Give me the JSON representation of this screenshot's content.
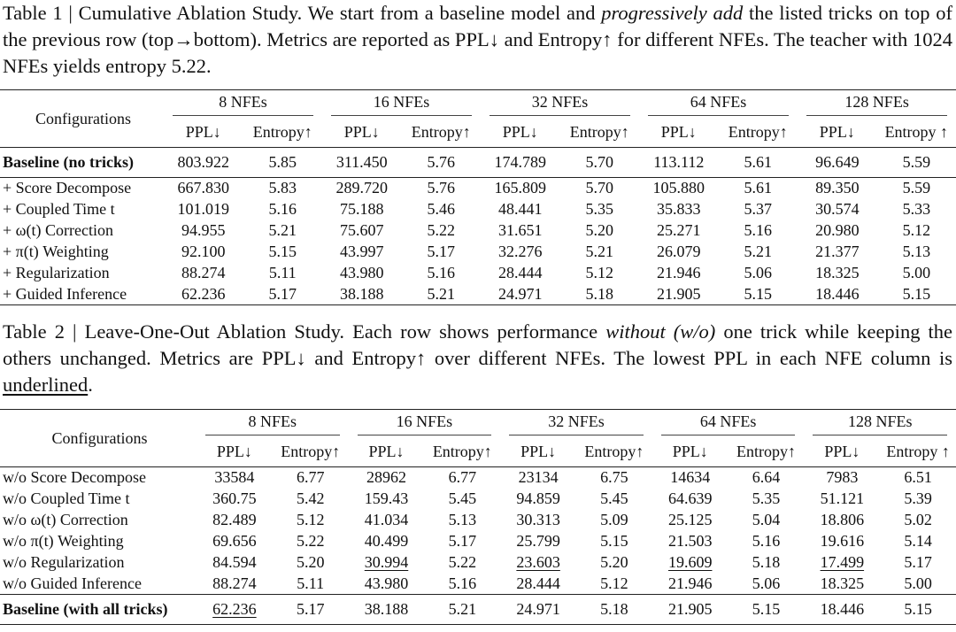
{
  "table1": {
    "caption": [
      "Table 1 | Cumulative Ablation Study. We start from a baseline model and ",
      "progressively add",
      " the listed tricks on top of the previous row (top→bottom). Metrics are reported as PPL↓ and Entropy↑ for different NFEs. The teacher with 1024 NFEs yields entropy 5.22."
    ],
    "config_header": "Configurations",
    "groups": [
      "8 NFEs",
      "16 NFEs",
      "32 NFEs",
      "64 NFEs",
      "128 NFEs"
    ],
    "subheaders": [
      "PPL↓",
      "Entropy↑",
      "PPL↓",
      "Entropy↑",
      "PPL↓",
      "Entropy↑",
      "PPL↓",
      "Entropy↑",
      "PPL↓",
      "Entropy ↑"
    ],
    "rows": [
      [
        "Baseline (no tricks)",
        "803.922",
        "5.85",
        "311.450",
        "5.76",
        "174.789",
        "5.70",
        "113.112",
        "5.61",
        "96.649",
        "5.59"
      ],
      [
        "+ Score Decompose",
        "667.830",
        "5.83",
        "289.720",
        "5.76",
        "165.809",
        "5.70",
        "105.880",
        "5.61",
        "89.350",
        "5.59"
      ],
      [
        "+ Coupled Time t",
        "101.019",
        "5.16",
        "75.188",
        "5.46",
        "48.441",
        "5.35",
        "35.833",
        "5.37",
        "30.574",
        "5.33"
      ],
      [
        "+ ω(t) Correction",
        "94.955",
        "5.21",
        "75.607",
        "5.22",
        "31.651",
        "5.20",
        "25.271",
        "5.16",
        "20.980",
        "5.12"
      ],
      [
        "+ π(t) Weighting",
        "92.100",
        "5.15",
        "43.997",
        "5.17",
        "32.276",
        "5.21",
        "26.079",
        "5.21",
        "21.377",
        "5.13"
      ],
      [
        "+ Regularization",
        "88.274",
        "5.11",
        "43.980",
        "5.16",
        "28.444",
        "5.12",
        "21.946",
        "5.06",
        "18.325",
        "5.00"
      ],
      [
        "+ Guided Inference",
        "62.236",
        "5.17",
        "38.188",
        "5.21",
        "24.971",
        "5.18",
        "21.905",
        "5.15",
        "18.446",
        "5.15"
      ]
    ],
    "bold_rows": [
      0
    ],
    "rule_after_rows": [
      0
    ],
    "underlined": []
  },
  "table2": {
    "caption": [
      "Table 2 | Leave-One-Out Ablation Study. Each row shows performance ",
      "without (w/o)",
      " one trick while keeping the others unchanged. Metrics are PPL↓ and Entropy↑ over different NFEs. The lowest PPL in each NFE column is ",
      "underlined",
      "."
    ],
    "config_header": "Configurations",
    "groups": [
      "8 NFEs",
      "16 NFEs",
      "32 NFEs",
      "64 NFEs",
      "128 NFEs"
    ],
    "subheaders": [
      "PPL↓",
      "Entropy↑",
      "PPL↓",
      "Entropy↑",
      "PPL↓",
      "Entropy↑",
      "PPL↓",
      "Entropy↑",
      "PPL↓",
      "Entropy ↑"
    ],
    "rows": [
      [
        "w/o Score Decompose",
        "33584",
        "6.77",
        "28962",
        "6.77",
        "23134",
        "6.75",
        "14634",
        "6.64",
        "7983",
        "6.51"
      ],
      [
        "w/o Coupled Time t",
        "360.75",
        "5.42",
        "159.43",
        "5.45",
        "94.859",
        "5.45",
        "64.639",
        "5.35",
        "51.121",
        "5.39"
      ],
      [
        "w/o ω(t) Correction",
        "82.489",
        "5.12",
        "41.034",
        "5.13",
        "30.313",
        "5.09",
        "25.125",
        "5.04",
        "18.806",
        "5.02"
      ],
      [
        "w/o π(t) Weighting",
        "69.656",
        "5.22",
        "40.499",
        "5.17",
        "25.799",
        "5.15",
        "21.503",
        "5.16",
        "19.616",
        "5.14"
      ],
      [
        "w/o Regularization",
        "84.594",
        "5.20",
        "30.994",
        "5.22",
        "23.603",
        "5.20",
        "19.609",
        "5.18",
        "17.499",
        "5.17"
      ],
      [
        "w/o Guided Inference",
        "88.274",
        "5.11",
        "43.980",
        "5.16",
        "28.444",
        "5.12",
        "21.946",
        "5.06",
        "18.325",
        "5.00"
      ],
      [
        "Baseline (with all tricks)",
        "62.236",
        "5.17",
        "38.188",
        "5.21",
        "24.971",
        "5.18",
        "21.905",
        "5.15",
        "18.446",
        "5.15"
      ]
    ],
    "bold_rows": [
      6
    ],
    "rule_after_rows": [
      5
    ],
    "underlined": [
      [
        4,
        3
      ],
      [
        4,
        5
      ],
      [
        4,
        7
      ],
      [
        4,
        9
      ],
      [
        6,
        1
      ]
    ]
  }
}
